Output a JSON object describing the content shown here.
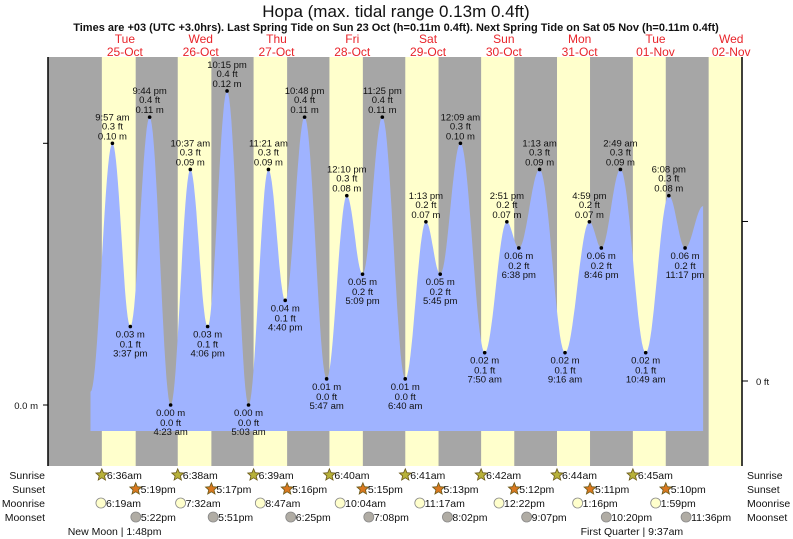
{
  "chart_data": {
    "type": "area",
    "title": "Hopa (max. tidal range 0.13m 0.4ft)",
    "subtitle": "Times are +03 (UTC +3.0hrs). Last Spring Tide on Sun 23 Oct (h=0.11m 0.4ft). Next Spring Tide on Sat 05 Nov (h=0.11m 0.4ft)",
    "days": [
      {
        "dow": "Tue",
        "date": "25-Oct"
      },
      {
        "dow": "Wed",
        "date": "26-Oct"
      },
      {
        "dow": "Thu",
        "date": "27-Oct"
      },
      {
        "dow": "Fri",
        "date": "28-Oct"
      },
      {
        "dow": "Sat",
        "date": "29-Oct"
      },
      {
        "dow": "Sun",
        "date": "30-Oct"
      },
      {
        "dow": "Mon",
        "date": "31-Oct"
      },
      {
        "dow": "Tue",
        "date": "01-Nov"
      },
      {
        "dow": "Wed",
        "date": "02-Nov"
      }
    ],
    "left_axis": {
      "label": "0.0 m",
      "unit": "m"
    },
    "right_axis": {
      "label": "0 ft",
      "unit": "ft"
    },
    "ylim_m": [
      -0.01,
      0.13
    ],
    "curve_start": {
      "day": 0,
      "time": "3:00 am",
      "value_m": 0.005
    },
    "curve_end": {
      "day": 8,
      "time": "5:00 am",
      "value_m": 0.076
    },
    "tides": [
      {
        "day": 0,
        "type": "high",
        "time": "9:57 am",
        "ft": "0.3 ft",
        "m": "0.10 m",
        "value_m": 0.1
      },
      {
        "day": 0,
        "type": "low",
        "time": "3:37 pm",
        "ft": "0.1 ft",
        "m": "0.03 m",
        "value_m": 0.03
      },
      {
        "day": 0,
        "type": "high",
        "time": "9:44 pm",
        "ft": "0.4 ft",
        "m": "0.11 m",
        "value_m": 0.11
      },
      {
        "day": 1,
        "type": "low",
        "time": "4:23 am",
        "ft": "0.0 ft",
        "m": "0.00 m",
        "value_m": 0.0
      },
      {
        "day": 1,
        "type": "high",
        "time": "10:37 am",
        "ft": "0.3 ft",
        "m": "0.09 m",
        "value_m": 0.09
      },
      {
        "day": 1,
        "type": "low",
        "time": "4:06 pm",
        "ft": "0.1 ft",
        "m": "0.03 m",
        "value_m": 0.03
      },
      {
        "day": 1,
        "type": "high",
        "time": "10:15 pm",
        "ft": "0.4 ft",
        "m": "0.12 m",
        "value_m": 0.12
      },
      {
        "day": 2,
        "type": "low",
        "time": "5:03 am",
        "ft": "0.0 ft",
        "m": "0.00 m",
        "value_m": 0.0
      },
      {
        "day": 2,
        "type": "high",
        "time": "11:21 am",
        "ft": "0.3 ft",
        "m": "0.09 m",
        "value_m": 0.09
      },
      {
        "day": 2,
        "type": "low",
        "time": "4:40 pm",
        "ft": "0.1 ft",
        "m": "0.04 m",
        "value_m": 0.04
      },
      {
        "day": 2,
        "type": "high",
        "time": "10:48 pm",
        "ft": "0.4 ft",
        "m": "0.11 m",
        "value_m": 0.11
      },
      {
        "day": 3,
        "type": "low",
        "time": "5:47 am",
        "ft": "0.0 ft",
        "m": "0.01 m",
        "value_m": 0.01
      },
      {
        "day": 3,
        "type": "high",
        "time": "12:10 pm",
        "ft": "0.3 ft",
        "m": "0.08 m",
        "value_m": 0.08
      },
      {
        "day": 3,
        "type": "low",
        "time": "5:09 pm",
        "ft": "0.2 ft",
        "m": "0.05 m",
        "value_m": 0.05
      },
      {
        "day": 3,
        "type": "high",
        "time": "11:25 pm",
        "ft": "0.4 ft",
        "m": "0.11 m",
        "value_m": 0.11
      },
      {
        "day": 4,
        "type": "low",
        "time": "6:40 am",
        "ft": "0.0 ft",
        "m": "0.01 m",
        "value_m": 0.01
      },
      {
        "day": 4,
        "type": "high",
        "time": "1:13 pm",
        "ft": "0.2 ft",
        "m": "0.07 m",
        "value_m": 0.07
      },
      {
        "day": 4,
        "type": "low",
        "time": "5:45 pm",
        "ft": "0.2 ft",
        "m": "0.05 m",
        "value_m": 0.05
      },
      {
        "day": 5,
        "type": "high",
        "time": "12:09 am",
        "ft": "0.3 ft",
        "m": "0.10 m",
        "value_m": 0.1
      },
      {
        "day": 5,
        "type": "low",
        "time": "7:50 am",
        "ft": "0.1 ft",
        "m": "0.02 m",
        "value_m": 0.02
      },
      {
        "day": 5,
        "type": "high",
        "time": "2:51 pm",
        "ft": "0.2 ft",
        "m": "0.07 m",
        "value_m": 0.07
      },
      {
        "day": 5,
        "type": "low",
        "time": "6:38 pm",
        "ft": "0.2 ft",
        "m": "0.06 m",
        "value_m": 0.06
      },
      {
        "day": 6,
        "type": "high",
        "time": "1:13 am",
        "ft": "0.3 ft",
        "m": "0.09 m",
        "value_m": 0.09
      },
      {
        "day": 6,
        "type": "low",
        "time": "9:16 am",
        "ft": "0.1 ft",
        "m": "0.02 m",
        "value_m": 0.02
      },
      {
        "day": 6,
        "type": "high",
        "time": "4:59 pm",
        "ft": "0.2 ft",
        "m": "0.07 m",
        "value_m": 0.07
      },
      {
        "day": 6,
        "type": "low",
        "time": "8:46 pm",
        "ft": "0.2 ft",
        "m": "0.06 m",
        "value_m": 0.06
      },
      {
        "day": 7,
        "type": "high",
        "time": "2:49 am",
        "ft": "0.3 ft",
        "m": "0.09 m",
        "value_m": 0.09
      },
      {
        "day": 7,
        "type": "low",
        "time": "10:49 am",
        "ft": "0.1 ft",
        "m": "0.02 m",
        "value_m": 0.02
      },
      {
        "day": 7,
        "type": "high",
        "time": "6:08 pm",
        "ft": "0.3 ft",
        "m": "0.08 m",
        "value_m": 0.08
      },
      {
        "day": 7,
        "type": "low",
        "time": "11:17 pm",
        "ft": "0.2 ft",
        "m": "0.06 m",
        "value_m": 0.06
      }
    ],
    "almanac": {
      "row_labels": {
        "sunrise": "Sunrise",
        "sunset": "Sunset",
        "moonrise": "Moonrise",
        "moonset": "Moonset"
      },
      "sunrise": [
        "6:36am",
        "6:38am",
        "6:39am",
        "6:40am",
        "6:41am",
        "6:42am",
        "6:44am",
        "6:45am"
      ],
      "sunset": [
        "5:19pm",
        "5:17pm",
        "5:16pm",
        "5:15pm",
        "5:13pm",
        "5:12pm",
        "5:11pm",
        "5:10pm"
      ],
      "moonrise": [
        "6:19am",
        "7:32am",
        "8:47am",
        "10:04am",
        "11:17am",
        "12:22pm",
        "1:16pm",
        "1:59pm"
      ],
      "moonset": [
        "5:22pm",
        "5:51pm",
        "6:25pm",
        "7:08pm",
        "8:02pm",
        "9:07pm",
        "10:20pm",
        "11:36pm"
      ],
      "phases": [
        {
          "day": 0,
          "name": "New Moon",
          "time": "1:48pm",
          "text": "New Moon | 1:48pm"
        },
        {
          "day": 7,
          "name": "First Quarter",
          "time": "9:37am",
          "text": "First Quarter | 9:37am"
        }
      ]
    },
    "colors": {
      "day": "#ffffcc",
      "night": "#a6a6a6",
      "water": "#9fb3ff",
      "day_label": "#e8242a",
      "sunrise": "#b7b13a",
      "sunset": "#d9781f",
      "moonrise": "#ffffcc",
      "moonset": "#b0aca4"
    }
  }
}
